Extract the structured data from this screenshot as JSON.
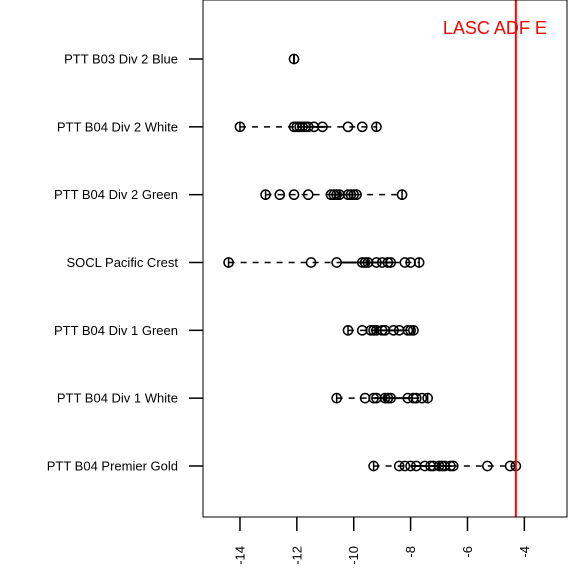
{
  "chart_data": {
    "type": "stripchart",
    "orientation": "horizontal",
    "title": "",
    "xlabel": "",
    "ylabel": "",
    "xlim": [
      -15.3,
      -2.5
    ],
    "x_ticks": [
      -14,
      -12,
      -10,
      -8,
      -6,
      -4
    ],
    "x_tick_labels": [
      "-14",
      "-12",
      "-10",
      "-8",
      "-6",
      "-4"
    ],
    "x_tick_label_rotation": "vertical",
    "grid": false,
    "categories": [
      "PTT B03 Div 2 Blue",
      "PTT B04 Div 2 White",
      "PTT B04 Div 2 Green",
      "SOCL Pacific Crest",
      "PTT B04 Div 1 Green",
      "PTT B04 Div 1 White",
      "PTT B04 Premier Gold"
    ],
    "series": [
      {
        "category": "PTT B03 Div 2 Blue",
        "points": [
          -12.1
        ],
        "box": {
          "min": -12.1,
          "q1": -12.1,
          "median": -12.1,
          "q3": -12.1,
          "max": -12.1
        }
      },
      {
        "category": "PTT B04 Div 2 White",
        "points": [
          -14.0,
          -12.1,
          -12.0,
          -11.9,
          -11.8,
          -11.7,
          -11.6,
          -11.4,
          -11.1,
          -10.2,
          -9.7,
          -9.2
        ],
        "box": {
          "min": -14.0,
          "q1": -12.0,
          "median": -11.75,
          "q3": -11.0,
          "max": -9.2
        }
      },
      {
        "category": "PTT B04 Div 2 Green",
        "points": [
          -13.1,
          -12.6,
          -12.1,
          -11.6,
          -10.8,
          -10.7,
          -10.6,
          -10.5,
          -10.2,
          -10.1,
          -10.0,
          -9.9,
          -8.3
        ],
        "box": {
          "min": -13.1,
          "q1": -10.8,
          "median": -10.5,
          "q3": -9.95,
          "max": -8.3
        }
      },
      {
        "category": "SOCL Pacific Crest",
        "points": [
          -14.4,
          -11.5,
          -10.6,
          -9.7,
          -9.6,
          -9.5,
          -9.2,
          -9.0,
          -8.8,
          -8.7,
          -8.2,
          -8.0,
          -7.7
        ],
        "box": {
          "min": -14.4,
          "q1": -10.4,
          "median": -9.5,
          "q3": -8.6,
          "max": -7.7
        }
      },
      {
        "category": "PTT B04 Div 1 Green",
        "points": [
          -10.2,
          -9.7,
          -9.4,
          -9.3,
          -9.2,
          -9.0,
          -8.9,
          -8.6,
          -8.4,
          -8.1,
          -8.0,
          -7.9
        ],
        "box": {
          "min": -10.2,
          "q1": -9.4,
          "median": -9.2,
          "q3": -8.3,
          "max": -7.9
        }
      },
      {
        "category": "PTT B04 Div 1 White",
        "points": [
          -10.6,
          -9.6,
          -9.3,
          -9.2,
          -8.9,
          -8.8,
          -8.7,
          -8.1,
          -7.9,
          -7.8,
          -7.6,
          -7.4
        ],
        "box": {
          "min": -10.6,
          "q1": -9.3,
          "median": -8.9,
          "q3": -7.9,
          "max": -7.4
        }
      },
      {
        "category": "PTT B04 Premier Gold",
        "points": [
          -9.3,
          -8.4,
          -8.2,
          -8.0,
          -7.8,
          -7.5,
          -7.3,
          -7.2,
          -7.0,
          -6.9,
          -6.8,
          -6.6,
          -6.5,
          -5.3,
          -4.5,
          -4.3
        ],
        "box": {
          "min": -9.3,
          "q1": -8.0,
          "median": -7.0,
          "q3": -6.55,
          "max": -4.3
        }
      }
    ],
    "reference_line": {
      "value": -4.3,
      "label": "LASC ADF E",
      "color": "#ff0000"
    },
    "colors": {
      "points": "#000000",
      "axes": "#000000",
      "reference": "#ff0000",
      "background": "#ffffff"
    }
  }
}
